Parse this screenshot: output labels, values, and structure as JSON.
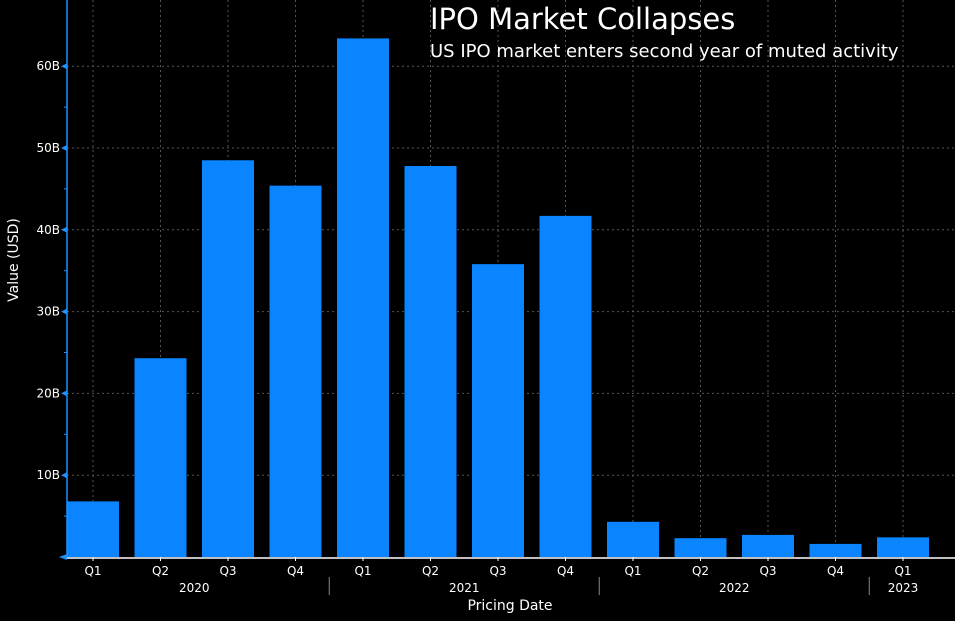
{
  "chart_data": {
    "type": "bar",
    "title": "IPO Market Collapses",
    "subtitle": "US IPO market enters second year of muted activity",
    "xlabel": "Pricing Date",
    "ylabel": "Value (USD)",
    "categories": [
      "Q1",
      "Q2",
      "Q3",
      "Q4",
      "Q1",
      "Q2",
      "Q3",
      "Q4",
      "Q1",
      "Q2",
      "Q3",
      "Q4",
      "Q1"
    ],
    "years": [
      {
        "label": "2020",
        "from": 0,
        "to": 3
      },
      {
        "label": "2021",
        "from": 4,
        "to": 7
      },
      {
        "label": "2022",
        "from": 8,
        "to": 11
      },
      {
        "label": "2023",
        "from": 12,
        "to": 12
      }
    ],
    "values": [
      6.8,
      24.3,
      48.5,
      45.4,
      63.4,
      47.8,
      35.8,
      41.7,
      4.3,
      2.3,
      2.7,
      1.6,
      2.4
    ],
    "unit": "B",
    "yticks": [
      10,
      20,
      30,
      40,
      50,
      60
    ],
    "ytick_labels": [
      "10B",
      "20B",
      "30B",
      "40B",
      "50B",
      "60B"
    ],
    "ylim": [
      0,
      66
    ],
    "grid": true,
    "bar_color": "#0a84ff",
    "axis_color": "#1e90ff"
  }
}
